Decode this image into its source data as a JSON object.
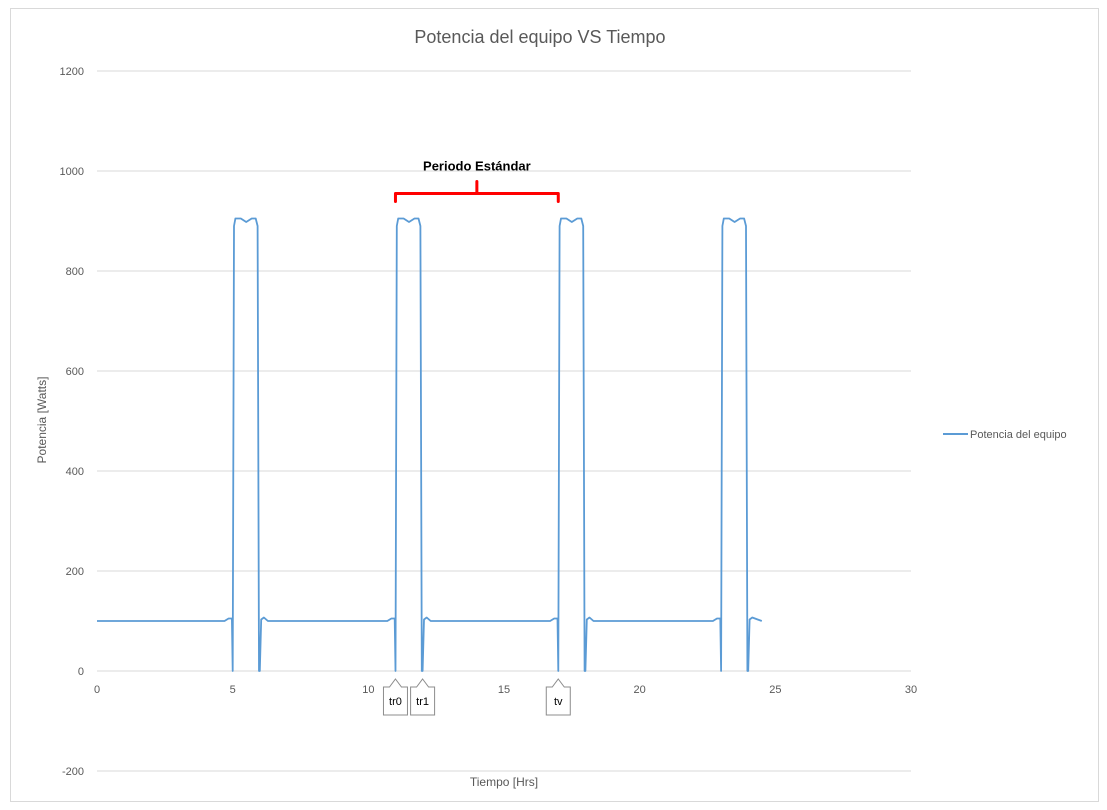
{
  "chart_data": {
    "type": "line",
    "title": "Potencia del equipo VS Tiempo",
    "xlabel": "Tiempo [Hrs]",
    "ylabel": "Potencia [Watts]",
    "xlim": [
      0,
      30
    ],
    "ylim": [
      -200,
      1200
    ],
    "xticks": [
      0,
      5,
      10,
      15,
      20,
      25,
      30
    ],
    "yticks": [
      -200,
      0,
      200,
      400,
      600,
      800,
      1000,
      1200
    ],
    "grid": "horizontal",
    "legend_position": "right",
    "series": [
      {
        "name": "Potencia del equipo",
        "color": "#5b9bd5",
        "x": [
          0,
          4.7,
          4.85,
          4.97,
          5.0,
          5.05,
          5.1,
          5.3,
          5.5,
          5.7,
          5.85,
          5.92,
          5.97,
          6.0,
          6.05,
          6.15,
          6.3,
          6.5,
          10.7,
          10.85,
          10.97,
          11.0,
          11.05,
          11.1,
          11.3,
          11.5,
          11.7,
          11.85,
          11.92,
          11.97,
          12.0,
          12.05,
          12.15,
          12.3,
          12.5,
          16.7,
          16.85,
          16.97,
          17.0,
          17.05,
          17.1,
          17.3,
          17.5,
          17.7,
          17.85,
          17.92,
          17.97,
          18.0,
          18.05,
          18.15,
          18.3,
          18.5,
          22.7,
          22.85,
          22.97,
          23.0,
          23.05,
          23.1,
          23.3,
          23.5,
          23.7,
          23.85,
          23.92,
          23.97,
          24.0,
          24.05,
          24.15,
          24.3,
          24.5
        ],
        "values": [
          100,
          100,
          105,
          105,
          0,
          890,
          905,
          905,
          898,
          905,
          905,
          890,
          0,
          0,
          103,
          107,
          100,
          100,
          100,
          105,
          105,
          0,
          890,
          905,
          905,
          898,
          905,
          905,
          890,
          0,
          0,
          103,
          107,
          100,
          100,
          100,
          105,
          105,
          0,
          890,
          905,
          905,
          898,
          905,
          905,
          890,
          0,
          0,
          103,
          107,
          100,
          100,
          100,
          105,
          105,
          0,
          890,
          905,
          905,
          898,
          905,
          905,
          890,
          0,
          0,
          103,
          107,
          104,
          100
        ]
      }
    ],
    "annotations": {
      "bracket": {
        "label": "Periodo Estándar",
        "x_start": 11,
        "x_end": 17,
        "y": 955,
        "color": "#ff0000"
      },
      "callouts": [
        {
          "label": "tr0",
          "x": 11
        },
        {
          "label": "tr1",
          "x": 12
        },
        {
          "label": "tv",
          "x": 17
        }
      ]
    }
  }
}
